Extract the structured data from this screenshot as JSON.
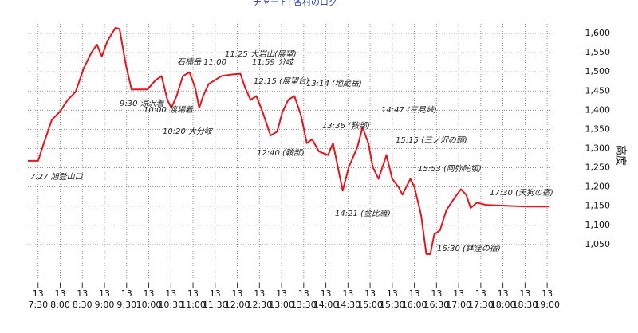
{
  "chart_data": {
    "type": "line",
    "title": "チャート: 各村のログ",
    "y_label": "高度",
    "x": [
      7.27,
      7.5,
      7.63,
      7.81,
      7.99,
      8.17,
      8.35,
      8.53,
      8.71,
      8.83,
      8.94,
      9.07,
      9.25,
      9.34,
      9.48,
      9.61,
      9.97,
      10.15,
      10.29,
      10.42,
      10.51,
      10.63,
      10.77,
      10.92,
      11.05,
      11.14,
      11.23,
      11.35,
      11.49,
      11.64,
      11.86,
      12.07,
      12.18,
      12.3,
      12.43,
      12.57,
      12.75,
      12.9,
      13.02,
      13.15,
      13.29,
      13.44,
      13.57,
      13.69,
      13.84,
      14.05,
      14.16,
      14.29,
      14.38,
      14.52,
      14.71,
      14.83,
      14.96,
      15.06,
      15.19,
      15.37,
      15.5,
      15.64,
      15.73,
      15.91,
      16.0,
      16.15,
      16.27,
      16.36,
      16.45,
      16.58,
      16.72,
      16.9,
      17.05,
      17.17,
      17.27,
      17.41,
      17.63,
      18.53,
      19.05
    ],
    "series": [
      {
        "name": "高度",
        "color": "#e8141c",
        "values": [
          1268,
          1268,
          1314,
          1375,
          1396,
          1427,
          1448,
          1509,
          1551,
          1571,
          1540,
          1581,
          1615,
          1612,
          1520,
          1454,
          1454,
          1478,
          1489,
          1427,
          1406,
          1437,
          1489,
          1499,
          1458,
          1406,
          1437,
          1468,
          1478,
          1489,
          1493,
          1495,
          1458,
          1427,
          1437,
          1396,
          1334,
          1344,
          1396,
          1427,
          1437,
          1386,
          1314,
          1324,
          1293,
          1283,
          1314,
          1241,
          1190,
          1252,
          1303,
          1355,
          1314,
          1252,
          1221,
          1283,
          1221,
          1200,
          1180,
          1221,
          1200,
          1128,
          1025,
          1025,
          1077,
          1087,
          1139,
          1170,
          1194,
          1180,
          1145,
          1159,
          1153,
          1149,
          1149
        ]
      }
    ],
    "xlim": [
      7.27,
      19.07
    ],
    "xticks": [
      {
        "value": 7.5,
        "day": "13",
        "label": "7:30"
      },
      {
        "value": 8,
        "day": "13",
        "label": "8:00"
      },
      {
        "value": 8.5,
        "day": "13",
        "label": "8:30"
      },
      {
        "value": 9,
        "day": "13",
        "label": "9:00"
      },
      {
        "value": 9.5,
        "day": "13",
        "label": "9:30"
      },
      {
        "value": 10,
        "day": "13",
        "label": "10:00"
      },
      {
        "value": 10.5,
        "day": "13",
        "label": "10:30"
      },
      {
        "value": 11,
        "day": "13",
        "label": "11:00"
      },
      {
        "value": 11.5,
        "day": "13",
        "label": "11:30"
      },
      {
        "value": 12,
        "day": "13",
        "label": "12:00"
      },
      {
        "value": 12.5,
        "day": "13",
        "label": "12:30"
      },
      {
        "value": 13,
        "day": "13",
        "label": "13:00"
      },
      {
        "value": 13.5,
        "day": "13",
        "label": "13:30"
      },
      {
        "value": 14,
        "day": "13",
        "label": "14:00"
      },
      {
        "value": 14.5,
        "day": "13",
        "label": "14:30"
      },
      {
        "value": 15,
        "day": "13",
        "label": "15:00"
      },
      {
        "value": 15.5,
        "day": "13",
        "label": "15:30"
      },
      {
        "value": 16,
        "day": "13",
        "label": "16:00"
      },
      {
        "value": 16.5,
        "day": "13",
        "label": "16:30"
      },
      {
        "value": 17,
        "day": "13",
        "label": "17:00"
      },
      {
        "value": 17.5,
        "day": "13",
        "label": "17:30"
      },
      {
        "value": 18,
        "day": "13",
        "label": "18:00"
      },
      {
        "value": 18.5,
        "day": "13",
        "label": "18:30"
      },
      {
        "value": 19,
        "day": "13",
        "label": "19:00"
      }
    ],
    "ylim": [
      950,
      1625
    ],
    "yticks": [
      {
        "value": 1050,
        "label": "1,050"
      },
      {
        "value": 1100,
        "label": "1,100"
      },
      {
        "value": 1150,
        "label": "1,150"
      },
      {
        "value": 1200,
        "label": "1,200"
      },
      {
        "value": 1250,
        "label": "1,250"
      },
      {
        "value": 1300,
        "label": "1,300"
      },
      {
        "value": 1350,
        "label": "1,350"
      },
      {
        "value": 1400,
        "label": "1,400"
      },
      {
        "value": 1450,
        "label": "1,450"
      },
      {
        "value": 1500,
        "label": "1,500"
      },
      {
        "value": 1550,
        "label": "1,550"
      },
      {
        "value": 1600,
        "label": "1,600"
      }
    ],
    "grid": true,
    "annotations": [
      "7:27 旭登山口",
      "9:30 涼沢着",
      "10:00 渡場着",
      "10:20 大分岐",
      "石楠岳 11:00",
      "11:25 大岩山(展望)",
      "11:59 分岐",
      "12:15 (展望台)",
      "13:14 (地蔵岳)",
      "12:40 (鞍部)",
      "13:36 (鞍部)",
      "14:47 (三見峠)",
      "15:15 (三ノ沢の頭)",
      "15:53 (阿弥陀坂)",
      "14:21 (金比羅)",
      "16:30 (鉢窪の宿)",
      "17:30 (天狗の宿)"
    ]
  }
}
